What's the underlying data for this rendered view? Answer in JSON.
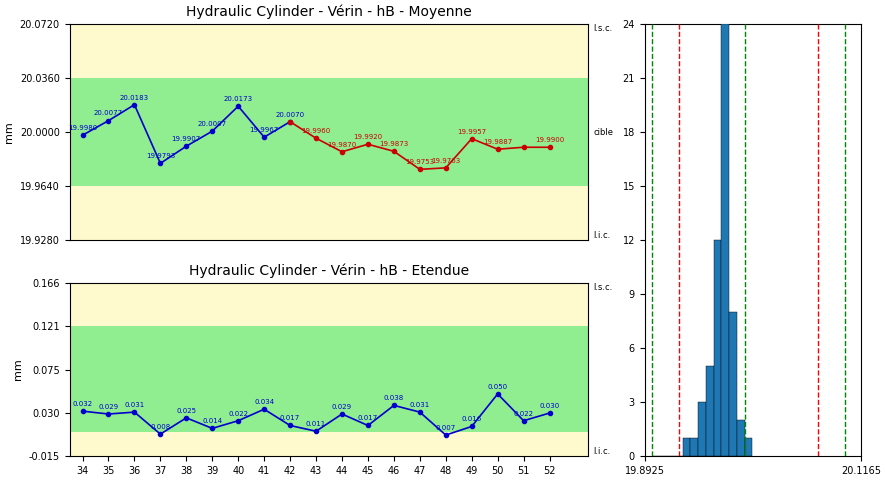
{
  "chart_data": [
    {
      "type": "line",
      "title": "Hydraulic Cylinder - Vérin - hB - Moyenne",
      "y_label": "mm",
      "x": [
        34,
        35,
        36,
        37,
        38,
        39,
        40,
        41,
        42,
        43,
        44,
        45,
        46,
        47,
        48,
        49,
        50,
        51,
        52
      ],
      "series": [
        {
          "color": "#0000CD",
          "marker": "o",
          "line_style": "solid",
          "values": [
            19.998,
            20.0077,
            20.0183,
            19.9793,
            19.9907,
            20.0007,
            20.0173,
            19.9967,
            20.007,
            null,
            null,
            null,
            null,
            null,
            null,
            null,
            null,
            null,
            null
          ],
          "value_labels": [
            "19.9980",
            "20.0077",
            "20.0183",
            "19.9793",
            "19.9907",
            "20.0007",
            "20.0173",
            "19.9967",
            "20.0070",
            null,
            null,
            null,
            null,
            null,
            null,
            null,
            null,
            null,
            null
          ]
        },
        {
          "color": "#CC0000",
          "marker": "o",
          "line_style": "solid",
          "values": [
            null,
            null,
            null,
            null,
            null,
            null,
            null,
            null,
            20.007,
            19.996,
            19.987,
            19.992,
            19.9873,
            19.9753,
            19.9763,
            19.9957,
            19.9887,
            19.99,
            19.99
          ],
          "value_labels": [
            null,
            null,
            null,
            null,
            null,
            null,
            null,
            null,
            null,
            "19.9960",
            "19.9870",
            "19.9920",
            "19.9873",
            "19.9753",
            "19.9763",
            "19.9957",
            "19.9887",
            null,
            "19.9900"
          ]
        }
      ],
      "data_labels": true,
      "xlim": [
        33.5,
        53.5
      ],
      "ylim": [
        19.928,
        20.072
      ],
      "yticks": [
        {
          "value": 19.928,
          "label": "19.9280"
        },
        {
          "value": 19.964,
          "label": "19.9640"
        },
        {
          "value": 20.0,
          "label": "20.0000"
        },
        {
          "value": 20.036,
          "label": "20.0360"
        },
        {
          "value": 20.072,
          "label": "20.0720"
        }
      ],
      "tick_labels": "y",
      "bands": [
        {
          "from": 20.036,
          "to": 20.072,
          "color": "#FFFACD"
        },
        {
          "from": 19.964,
          "to": 20.036,
          "color": "#90EE90"
        },
        {
          "from": 19.928,
          "to": 19.964,
          "color": "#FFFACD"
        }
      ],
      "annotations": [
        {
          "text": "l.s.c.",
          "y": 20.072
        },
        {
          "text": "cible",
          "y": 20.0
        },
        {
          "text": "l.i.c.",
          "y": 19.928
        }
      ]
    },
    {
      "type": "line",
      "title": "Hydraulic Cylinder - Vérin - hB - Etendue",
      "y_label": "mm",
      "x": [
        34,
        35,
        36,
        37,
        38,
        39,
        40,
        41,
        42,
        43,
        44,
        45,
        46,
        47,
        48,
        49,
        50,
        51,
        52
      ],
      "series": [
        {
          "color": "#0000CD",
          "marker": "o",
          "line_style": "solid",
          "values": [
            0.032,
            0.029,
            0.031,
            0.008,
            0.025,
            0.014,
            0.022,
            0.034,
            0.017,
            0.011,
            0.029,
            0.017,
            0.038,
            0.031,
            0.007,
            0.016,
            0.05,
            0.022,
            0.03
          ],
          "value_labels": [
            "0.032",
            "0.029",
            "0.031",
            "0.008",
            "0.025",
            "0.014",
            "0.022",
            "0.034",
            "0.017",
            "0.011",
            "0.029",
            "0.017",
            "0.038",
            "0.031",
            "0.007",
            "0.016",
            "0.050",
            "0.022",
            "0.030"
          ]
        }
      ],
      "data_labels": true,
      "xlim": [
        33.5,
        53.5
      ],
      "xticks": [
        34,
        35,
        36,
        37,
        38,
        39,
        40,
        41,
        42,
        43,
        44,
        45,
        46,
        47,
        48,
        49,
        50,
        51,
        52
      ],
      "ylim": [
        -0.015,
        0.166
      ],
      "yticks": [
        -0.015,
        {
          "value": 0.03,
          "label": "0.030"
        },
        0.075,
        0.121,
        0.166
      ],
      "bands": [
        {
          "from": 0.121,
          "to": 0.166,
          "color": "#FFFACD"
        },
        {
          "from": 0.01,
          "to": 0.121,
          "color": "#90EE90"
        },
        {
          "from": -0.015,
          "to": 0.01,
          "color": "#FFFACD"
        }
      ],
      "annotations": [
        {
          "text": "l.s.c.",
          "y": 0.166
        },
        {
          "text": "l.i.c.",
          "y": -0.015
        }
      ]
    },
    {
      "type": "histogram",
      "bins": [
        19.9,
        19.908,
        19.916,
        19.924,
        19.932,
        19.94,
        19.948,
        19.956,
        19.964,
        19.972,
        19.98,
        19.988,
        19.996,
        20.004
      ],
      "values": [
        0,
        0,
        0,
        0,
        1,
        1,
        3,
        5,
        12,
        24,
        8,
        2,
        1
      ],
      "xlim": [
        19.8925,
        20.1165
      ],
      "xticks": [
        19.8925,
        20.1165
      ],
      "ylim": [
        0,
        24
      ],
      "yticks": [
        0,
        3,
        6,
        9,
        12,
        15,
        18,
        21,
        24
      ],
      "vlines": [
        {
          "x": 19.9,
          "color": "#008800",
          "line_style": "dashed"
        },
        {
          "x": 20.1,
          "color": "#008800",
          "line_style": "dashed"
        },
        {
          "x": 19.996,
          "color": "#008800",
          "line_style": "dashed"
        },
        {
          "x": 19.928,
          "color": "#FF0000",
          "line_style": "dashed"
        },
        {
          "x": 20.072,
          "color": "#FF0000",
          "line_style": "dashed"
        }
      ]
    }
  ]
}
